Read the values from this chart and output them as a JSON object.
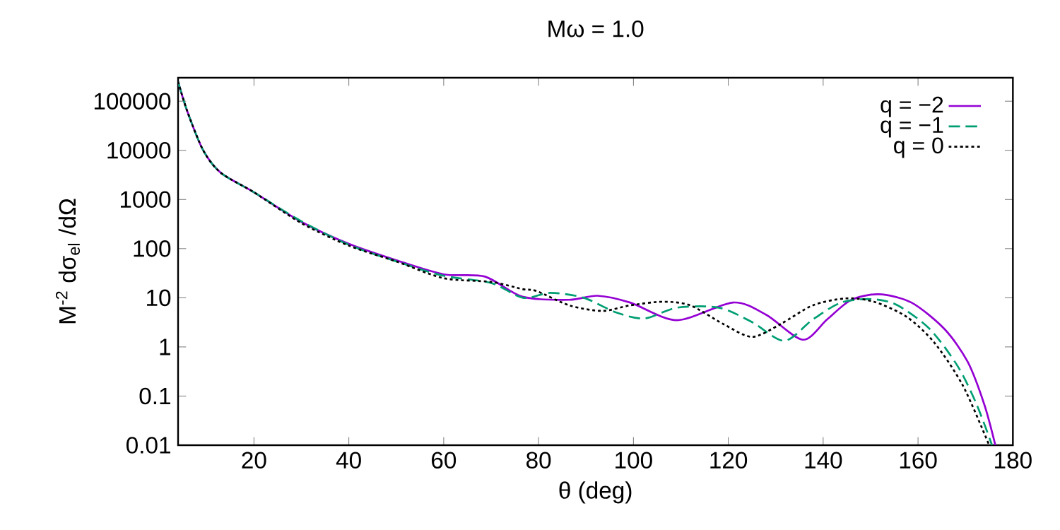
{
  "chart_data": {
    "type": "line",
    "title": "Mω = 1.0",
    "xlabel": "θ (deg)",
    "ylabel": "M$^{-2}$ dσ$_{el}$ /dΩ",
    "log": "y",
    "legend": "top right",
    "grid": false,
    "xlim": [
      4,
      180
    ],
    "xticks": [
      20,
      40,
      60,
      80,
      100,
      120,
      140,
      160,
      180
    ],
    "ylim": [
      0.01,
      300000
    ],
    "yticks": [
      0.01,
      0.1,
      1,
      10,
      100,
      1000,
      10000,
      100000
    ],
    "series": [
      {
        "name": "q = −2",
        "color": "#9400d3",
        "line_style": "solid",
        "x": [
          4,
          6,
          9.3,
          13,
          20,
          30,
          40,
          50,
          60,
          68.7,
          76.6,
          86.5,
          92.4,
          99.3,
          109.2,
          121,
          128,
          135.7,
          140.8,
          145.8,
          151.7,
          158.6,
          165.6,
          170.5,
          174,
          176.3
        ],
        "values": [
          250000,
          60000,
          10000,
          3500,
          1400,
          350,
          125,
          58,
          30,
          27,
          10.5,
          9.1,
          11,
          8,
          3.5,
          8,
          4.5,
          1.4,
          3.6,
          8.9,
          11.8,
          8,
          2.3,
          0.49,
          0.066,
          0.01
        ]
      },
      {
        "name": "q = −1",
        "color": "#009e73",
        "line_style": "dashed",
        "x": [
          4,
          6,
          9.3,
          13,
          20,
          30,
          40,
          50,
          60,
          70,
          76.7,
          82.5,
          89.5,
          96.4,
          102.4,
          109.2,
          118,
          125,
          131.8,
          137.8,
          143.8,
          150.2,
          155.6,
          162.5,
          168.4,
          172.4,
          175.6
        ],
        "values": [
          250000,
          60000,
          10000,
          3500,
          1400,
          360,
          120,
          55,
          28,
          20,
          10,
          12.6,
          10,
          5,
          3.8,
          6.3,
          6.3,
          3.2,
          1.33,
          3.6,
          8,
          9.4,
          7.1,
          2.3,
          0.4,
          0.066,
          0.01
        ]
      },
      {
        "name": "q = 0",
        "color": "#000000",
        "line_style": "dotted",
        "x": [
          4,
          6,
          9.3,
          13,
          20,
          30,
          40,
          50,
          60,
          70,
          76.6,
          79.6,
          86.5,
          93.4,
          99.3,
          106.2,
          112,
          119,
          125,
          131,
          137.8,
          144.7,
          150.7,
          157.6,
          163.5,
          169.5,
          175
        ],
        "values": [
          250000,
          60000,
          10000,
          3500,
          1400,
          330,
          115,
          55,
          25,
          21,
          15,
          13.7,
          7,
          5.4,
          7,
          8.3,
          7,
          2.9,
          1.6,
          2.9,
          7,
          9.7,
          8.3,
          4.1,
          1.2,
          0.16,
          0.01
        ]
      }
    ]
  }
}
